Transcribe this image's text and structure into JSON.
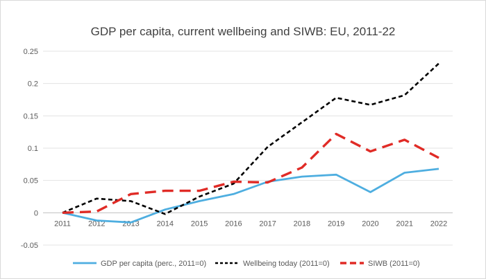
{
  "chart_data": {
    "type": "line",
    "title": "GDP per capita, current wellbeing and SIWB: EU, 2011-22",
    "xlabel": "",
    "ylabel": "",
    "categories": [
      "2011",
      "2012",
      "2013",
      "2014",
      "2015",
      "2016",
      "2017",
      "2018",
      "2019",
      "2020",
      "2021",
      "2022"
    ],
    "ylim": [
      -0.05,
      0.25
    ],
    "yticks": [
      "0.25",
      "0.2",
      "0.15",
      "0.1",
      "0.05",
      "0",
      "-0.05"
    ],
    "ytick_values": [
      0.25,
      0.2,
      0.15,
      0.1,
      0.05,
      0,
      -0.05
    ],
    "grid": "horizontal",
    "legend_position": "bottom",
    "series": [
      {
        "name": "GDP per capita (perc., 2011=0)",
        "color": "#4eaee0",
        "style": "solid",
        "values": [
          0,
          -0.012,
          -0.015,
          0.005,
          0.018,
          0.029,
          0.048,
          0.056,
          0.059,
          0.032,
          0.062,
          0.068
        ]
      },
      {
        "name": "Wellbeing today (2011=0)",
        "color": "#000000",
        "style": "dashed",
        "values": [
          0,
          0.022,
          0.018,
          -0.002,
          0.025,
          0.045,
          0.102,
          0.14,
          0.178,
          0.167,
          0.182,
          0.231
        ]
      },
      {
        "name": "SIWB (2011=0)",
        "color": "#e02b26",
        "style": "longdash",
        "values": [
          0,
          0.002,
          0.029,
          0.034,
          0.034,
          0.048,
          0.047,
          0.07,
          0.122,
          0.095,
          0.113,
          0.085
        ]
      }
    ]
  }
}
